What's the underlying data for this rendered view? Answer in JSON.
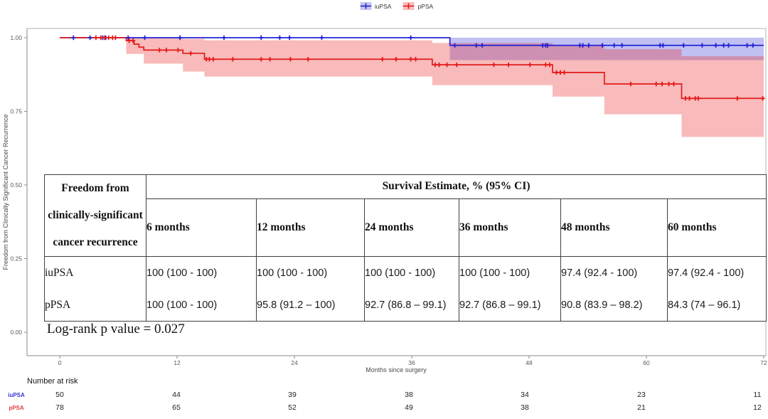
{
  "legend": {
    "items": [
      {
        "label": "iuPSA",
        "color": "#2323d3",
        "fill": "#c6c6f0"
      },
      {
        "label": "pPSA",
        "color": "#e41b1b",
        "fill": "#f8bcbc"
      }
    ]
  },
  "chart_data": {
    "type": "line",
    "subtype": "kaplan-meier-step",
    "xlabel": "Months since surgery",
    "ylabel": "Freedom from Clinically Significant Cancer Recurrence",
    "xlim": [
      0,
      72
    ],
    "ylim": [
      0,
      1
    ],
    "xticks": [
      0,
      12,
      24,
      36,
      48,
      60,
      72
    ],
    "yticks": [
      0,
      0.25,
      0.5,
      0.75,
      1
    ],
    "grid": false,
    "legend_position": "top-center",
    "annotation": "Log-rank p value = 0.027",
    "series": [
      {
        "name": "iuPSA",
        "color": "#2323d3",
        "band": "rgba(47,47,215,0.30)",
        "steps": [
          [
            0,
            1.0
          ],
          [
            39.9,
            0.974
          ]
        ],
        "ci": [
          [
            39.9,
            72,
            0.924,
            1.0
          ]
        ],
        "censors": [
          1.4,
          3.1,
          4.4,
          4.7,
          7.0,
          8.7,
          12.3,
          16.8,
          20.6,
          22.5,
          23.5,
          26.8,
          35.9,
          40.4,
          42.6,
          43.2,
          49.4,
          49.7,
          49.9,
          53.2,
          53.5,
          54.1,
          55.5,
          56.7,
          57.5,
          61.4,
          61.7,
          63.8,
          65.7,
          67.1,
          67.9,
          68.4,
          70.3,
          70.9
        ]
      },
      {
        "name": "pPSA",
        "color": "#e41b1b",
        "band": "rgba(235,45,45,0.33)",
        "steps": [
          [
            0,
            1.0
          ],
          [
            6.8,
            0.99
          ],
          [
            7.6,
            0.978
          ],
          [
            8.1,
            0.968
          ],
          [
            8.6,
            0.958
          ],
          [
            12.6,
            0.947
          ],
          [
            14.8,
            0.927
          ],
          [
            38.1,
            0.908
          ],
          [
            50.4,
            0.882
          ],
          [
            55.7,
            0.843
          ],
          [
            63.6,
            0.794
          ]
        ],
        "ci": [
          [
            6.8,
            8.6,
            0.945,
            1.0
          ],
          [
            8.6,
            12.6,
            0.912,
            1.0
          ],
          [
            12.6,
            14.8,
            0.885,
            0.996
          ],
          [
            14.8,
            38.1,
            0.868,
            0.991
          ],
          [
            38.1,
            50.4,
            0.839,
            0.982
          ],
          [
            50.4,
            55.7,
            0.8,
            0.972
          ],
          [
            55.7,
            63.6,
            0.74,
            0.961
          ],
          [
            63.6,
            72,
            0.663,
            0.937
          ]
        ],
        "censors": [
          3.7,
          4.2,
          4.6,
          5.0,
          5.4,
          5.7,
          7.1,
          7.5,
          10.2,
          10.9,
          12.1,
          13.4,
          15.0,
          15.3,
          15.7,
          17.7,
          20.6,
          21.5,
          23.6,
          25.4,
          33.0,
          34.4,
          35.9,
          36.4,
          38.4,
          38.8,
          39.6,
          40.6,
          44.4,
          45.9,
          48.1,
          49.7,
          50.1,
          50.8,
          51.2,
          51.6,
          58.4,
          61.0,
          61.6,
          62.3,
          62.8,
          64.0,
          64.4,
          65.0,
          65.3,
          69.3,
          71.9
        ]
      }
    ]
  },
  "summary_table": {
    "corner_header_lines": [
      "Freedom from",
      "clinically-significant",
      "cancer recurrence"
    ],
    "span_header": "Survival Estimate, % (95% CI)",
    "columns": [
      "6 months",
      "12 months",
      "24 months",
      "36 months",
      "48 months",
      "60 months"
    ],
    "rows": [
      {
        "label": "iuPSA",
        "values": [
          "100 (100 - 100)",
          "100 (100 - 100)",
          "100 (100 - 100)",
          "100 (100 - 100)",
          "97.4 (92.4 - 100)",
          "97.4 (92.4 - 100)"
        ]
      },
      {
        "label": "pPSA",
        "values": [
          "100 (100 - 100)",
          "95.8 (91.2 – 100)",
          "92.7 (86.8 – 99.1)",
          "92.7 (86.8 – 99.1)",
          "90.8 (83.9 – 98.2)",
          "84.3 (74 – 96.1)"
        ]
      }
    ]
  },
  "annotation": {
    "logrank": "Log-rank p value = 0.027"
  },
  "risk_table": {
    "title": "Number at risk",
    "timepoints": [
      0,
      12,
      24,
      36,
      48,
      60,
      72
    ],
    "rows": [
      {
        "label": "iuPSA",
        "color": "#3434d0",
        "counts": [
          "50",
          "44",
          "39",
          "38",
          "34",
          "23",
          "11"
        ]
      },
      {
        "label": "pPSA",
        "color": "#e04040",
        "counts": [
          "78",
          "65",
          "52",
          "49",
          "38",
          "21",
          "12"
        ]
      }
    ]
  }
}
